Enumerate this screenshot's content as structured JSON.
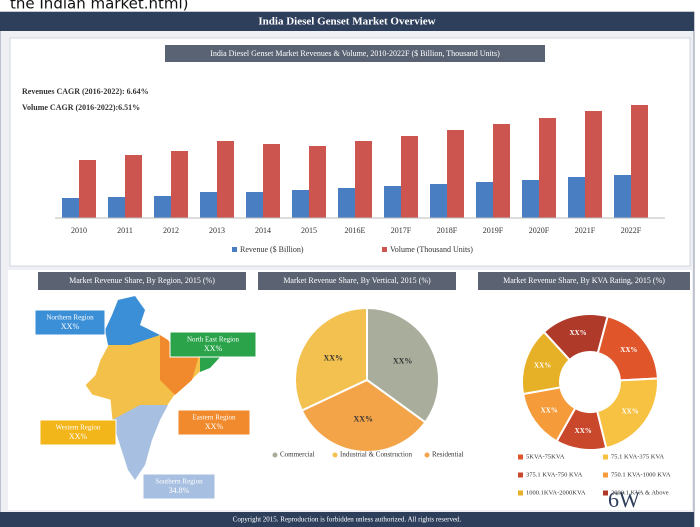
{
  "top_text": "the Indian market.html)",
  "header": "India Diesel Genset Market Overview",
  "footer": "Copyright 2015. Reproduction is forbidden unless authorized. All rights reserved.",
  "logo": "6W",
  "map": {
    "title": "Market Revenue Share, By Region, 2015 (%)",
    "regions": [
      {
        "name": "Northern Region",
        "value": "XX%",
        "color": "#3a8fd6"
      },
      {
        "name": "North East Region",
        "value": "XX%",
        "color": "#2aa34a"
      },
      {
        "name": "Western Region",
        "value": "XX%",
        "color": "#f2b51a"
      },
      {
        "name": "Eastern Region",
        "value": "XX%",
        "color": "#f08a2c"
      },
      {
        "name": "Southern Region",
        "value": "34.8%",
        "color": "#a7bfe0"
      }
    ]
  },
  "chart_data": [
    {
      "type": "bar",
      "title": "India Diesel Genset Market Revenues & Volume, 2010-2022F ($ Billion, Thousand Units)",
      "annotations": [
        "Revenues CAGR (2016-2022): 6.64%",
        "Volume CAGR (2016-2022):6.51%"
      ],
      "categories": [
        "2010",
        "2011",
        "2012",
        "2013",
        "2014",
        "2015",
        "2016E",
        "2017F",
        "2018F",
        "2019F",
        "2020F",
        "2021F",
        "2022F"
      ],
      "series": [
        {
          "name": "Revenue ($ Billion)",
          "color": "#4a7ec2",
          "values": [
            20,
            21,
            22,
            26,
            26,
            28,
            30,
            32,
            34,
            36,
            38,
            41,
            43
          ]
        },
        {
          "name": "Volume (Thousand Units)",
          "color": "#cd5550",
          "values": [
            58,
            63,
            67,
            77,
            74,
            72,
            77,
            82,
            88,
            94,
            100,
            107,
            113
          ]
        }
      ],
      "ylim": [
        0,
        120
      ]
    },
    {
      "type": "pie",
      "title": "Market Revenue Share, By Vertical, 2015 (%)",
      "categories": [
        "Commercial",
        "Industrial & Construction",
        "Residential"
      ],
      "colors": [
        "#a9ad9c",
        "#f3c150",
        "#f4a448"
      ],
      "values": [
        35,
        32,
        33
      ],
      "value_labels": [
        "XX%",
        "XX%",
        "XX%"
      ]
    },
    {
      "type": "donut",
      "title": "Market Revenue Share, By KVA Rating, 2015 (%)",
      "categories": [
        "5KVA-75KVA",
        "75.1 KVA-375 KVA",
        "375.1 KVA-750 KVA",
        "750.1 KVA-1000 KVA",
        "1000.1KVA-2000KVA",
        "2000.1 KVA & Above"
      ],
      "colors": [
        "#e0562a",
        "#f7c242",
        "#c9472b",
        "#f59b3a",
        "#e6b027",
        "#b03a2a"
      ],
      "values": [
        20,
        22,
        12,
        14,
        16,
        16
      ],
      "value_labels": [
        "XX%",
        "XX%",
        "XX%",
        "XX%",
        "XX%",
        "XX%"
      ]
    }
  ]
}
